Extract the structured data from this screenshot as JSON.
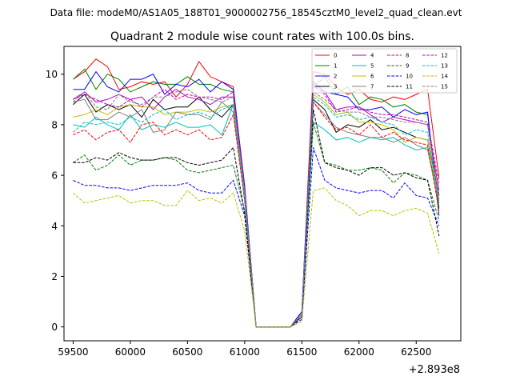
{
  "figure": {
    "suptitle": "Data file: modeM0/AS1A05_188T01_9000002756_18545cztM0_level2_quad_clean.evt"
  },
  "chart_data": {
    "type": "line",
    "title": "Quadrant 2 module wise count rates with 100.0s bins.",
    "xlabel": "",
    "ylabel": "",
    "x_offset_label": "+2.893e8",
    "xlim": [
      59420,
      62890
    ],
    "ylim": [
      -0.55,
      11.1
    ],
    "x_ticks": [
      59500,
      60000,
      60500,
      61000,
      61500,
      62000,
      62500
    ],
    "x_tick_labels": [
      "59500",
      "60000",
      "60500",
      "61000",
      "61500",
      "62000",
      "62500"
    ],
    "y_ticks": [
      0,
      2,
      4,
      6,
      8,
      10
    ],
    "y_tick_labels": [
      "0",
      "2",
      "4",
      "6",
      "8",
      "10"
    ],
    "grid": false,
    "legend_position": "top-right",
    "legend_columns": 4,
    "x": [
      59500,
      59600,
      59700,
      59800,
      59900,
      60000,
      60100,
      60200,
      60300,
      60400,
      60500,
      60600,
      60700,
      60800,
      60900,
      61000,
      61100,
      61200,
      61300,
      61400,
      61500,
      61600,
      61700,
      61800,
      61900,
      62000,
      62100,
      62200,
      62300,
      62400,
      62500,
      62600,
      62700
    ],
    "series": [
      {
        "name": "0",
        "color": "#ff0000",
        "style": "solid",
        "values": [
          9.8,
          10.1,
          10.6,
          10.3,
          9.4,
          9.5,
          9.7,
          9.6,
          9.7,
          9.1,
          9.6,
          10.5,
          9.9,
          9.7,
          9.5,
          5.5,
          0.0,
          0.0,
          0.0,
          0.0,
          0.6,
          10.1,
          10.0,
          9.5,
          9.2,
          9.4,
          9.0,
          8.9,
          9.1,
          9.0,
          9.2,
          9.4,
          5.9
        ]
      },
      {
        "name": "1",
        "color": "#008000",
        "style": "solid",
        "values": [
          9.8,
          10.2,
          9.4,
          10.0,
          9.8,
          9.3,
          9.5,
          9.7,
          9.6,
          9.6,
          9.9,
          9.6,
          9.6,
          9.4,
          9.3,
          5.4,
          0.0,
          0.0,
          0.0,
          0.0,
          0.5,
          9.5,
          9.9,
          9.2,
          9.5,
          8.8,
          9.1,
          9.0,
          8.7,
          8.8,
          8.5,
          8.4,
          4.7
        ]
      },
      {
        "name": "2",
        "color": "#0000ff",
        "style": "solid",
        "values": [
          9.4,
          9.4,
          10.1,
          9.5,
          9.3,
          9.8,
          9.8,
          10.0,
          9.2,
          9.6,
          9.5,
          9.8,
          9.3,
          9.7,
          9.4,
          5.6,
          0.0,
          0.0,
          0.0,
          0.0,
          0.6,
          9.7,
          9.3,
          9.2,
          9.1,
          8.6,
          8.6,
          8.7,
          8.3,
          8.6,
          8.4,
          8.5,
          4.4
        ]
      },
      {
        "name": "3",
        "color": "#000000",
        "style": "solid",
        "values": [
          8.8,
          9.2,
          8.5,
          8.8,
          8.6,
          8.8,
          8.3,
          9.0,
          8.6,
          8.7,
          8.7,
          9.1,
          8.6,
          8.3,
          8.8,
          5.2,
          0.0,
          0.0,
          0.0,
          0.0,
          0.5,
          9.0,
          8.6,
          7.7,
          8.0,
          7.9,
          8.2,
          7.8,
          7.9,
          7.7,
          7.5,
          7.4,
          5.2
        ]
      },
      {
        "name": "4",
        "color": "#bf00bf",
        "style": "solid",
        "values": [
          9.0,
          9.3,
          8.9,
          9.0,
          9.2,
          9.0,
          9.1,
          8.6,
          9.1,
          9.4,
          9.1,
          9.0,
          8.8,
          9.1,
          9.1,
          5.3,
          0.0,
          0.0,
          0.0,
          0.0,
          0.5,
          9.5,
          9.3,
          8.6,
          8.7,
          8.7,
          8.4,
          8.1,
          8.3,
          8.2,
          8.1,
          8.0,
          5.4
        ]
      },
      {
        "name": "5",
        "color": "#00bfbf",
        "style": "solid",
        "values": [
          8.0,
          7.9,
          8.3,
          8.0,
          7.8,
          8.4,
          7.8,
          8.0,
          7.9,
          8.1,
          7.9,
          7.9,
          8.0,
          7.6,
          8.8,
          5.0,
          0.0,
          0.0,
          0.0,
          0.0,
          0.5,
          8.1,
          7.8,
          7.4,
          7.5,
          7.3,
          7.5,
          7.4,
          7.5,
          7.2,
          7.0,
          7.1,
          5.0
        ]
      },
      {
        "name": "6",
        "color": "#bfbf00",
        "style": "solid",
        "values": [
          8.3,
          8.4,
          8.6,
          8.4,
          8.7,
          8.8,
          8.7,
          8.7,
          8.4,
          8.5,
          8.5,
          8.6,
          8.5,
          8.7,
          8.8,
          5.3,
          0.0,
          0.0,
          0.0,
          0.0,
          0.5,
          9.2,
          8.9,
          8.4,
          8.5,
          8.1,
          8.1,
          8.0,
          7.8,
          7.3,
          7.5,
          7.4,
          5.0
        ]
      },
      {
        "name": "7",
        "color": "#808080",
        "style": "solid",
        "values": [
          8.9,
          9.0,
          8.2,
          8.2,
          8.5,
          8.3,
          8.6,
          7.7,
          7.8,
          8.5,
          8.4,
          8.4,
          8.2,
          8.9,
          8.5,
          5.1,
          0.0,
          0.0,
          0.0,
          0.0,
          0.5,
          8.9,
          8.4,
          7.9,
          7.7,
          7.6,
          7.5,
          7.5,
          7.3,
          7.5,
          7.2,
          7.0,
          4.9
        ]
      },
      {
        "name": "8",
        "color": "#ff0000",
        "style": "dashed",
        "values": [
          7.6,
          7.8,
          7.4,
          7.7,
          7.8,
          7.3,
          8.0,
          8.1,
          7.6,
          7.8,
          7.6,
          7.8,
          7.4,
          7.5,
          8.4,
          5.0,
          0.0,
          0.0,
          0.0,
          0.0,
          0.4,
          8.9,
          8.3,
          7.8,
          7.9,
          7.6,
          8.0,
          7.5,
          7.7,
          7.4,
          7.3,
          7.2,
          4.6
        ]
      },
      {
        "name": "9",
        "color": "#008000",
        "style": "dashed",
        "values": [
          6.5,
          6.8,
          6.2,
          6.4,
          6.8,
          6.4,
          6.6,
          6.6,
          6.7,
          6.6,
          6.2,
          6.1,
          6.2,
          6.3,
          6.4,
          4.6,
          0.0,
          0.0,
          0.0,
          0.0,
          0.4,
          8.1,
          6.5,
          6.4,
          6.2,
          6.2,
          6.3,
          6.2,
          5.7,
          6.1,
          6.0,
          5.8,
          4.2
        ]
      },
      {
        "name": "10",
        "color": "#0000ff",
        "style": "dashed",
        "values": [
          5.8,
          5.6,
          5.6,
          5.5,
          5.5,
          5.4,
          5.5,
          5.6,
          5.6,
          5.6,
          5.7,
          5.4,
          5.3,
          5.3,
          5.8,
          4.4,
          0.0,
          0.0,
          0.0,
          0.0,
          0.3,
          7.1,
          5.8,
          5.5,
          5.4,
          5.3,
          5.4,
          5.4,
          5.1,
          5.7,
          5.2,
          5.1,
          4.0
        ]
      },
      {
        "name": "11",
        "color": "#000000",
        "style": "dashed",
        "values": [
          6.5,
          6.5,
          6.7,
          6.6,
          6.9,
          6.7,
          6.6,
          6.6,
          6.7,
          6.7,
          6.5,
          6.4,
          6.5,
          6.6,
          7.1,
          4.5,
          0.0,
          0.0,
          0.0,
          0.0,
          0.4,
          8.6,
          6.5,
          6.3,
          6.2,
          6.0,
          6.3,
          6.3,
          6.0,
          6.1,
          5.9,
          5.8,
          3.6
        ]
      },
      {
        "name": "12",
        "color": "#bf00bf",
        "style": "dashed",
        "values": [
          9.0,
          9.2,
          9.0,
          8.8,
          8.7,
          9.0,
          8.7,
          9.1,
          9.4,
          9.0,
          9.2,
          9.1,
          9.1,
          9.0,
          9.3,
          5.5,
          0.0,
          0.0,
          0.0,
          0.0,
          0.5,
          9.6,
          9.2,
          8.5,
          8.6,
          8.7,
          8.5,
          8.4,
          8.4,
          8.3,
          8.2,
          8.1,
          5.7
        ]
      },
      {
        "name": "13",
        "color": "#00bfbf",
        "style": "dashed",
        "values": [
          7.7,
          8.1,
          8.0,
          8.1,
          8.0,
          8.3,
          8.1,
          8.4,
          8.6,
          8.2,
          8.4,
          8.5,
          8.3,
          8.6,
          8.8,
          5.1,
          0.0,
          0.0,
          0.0,
          0.0,
          0.5,
          9.1,
          8.8,
          8.3,
          8.4,
          8.2,
          8.3,
          8.1,
          8.0,
          7.6,
          7.8,
          7.7,
          5.0
        ]
      },
      {
        "name": "14",
        "color": "#bfbf00",
        "style": "dashed",
        "values": [
          5.3,
          4.9,
          5.0,
          5.1,
          5.2,
          4.9,
          5.0,
          5.0,
          4.8,
          4.8,
          5.4,
          5.0,
          5.1,
          4.9,
          5.3,
          3.8,
          0.0,
          0.0,
          0.0,
          0.0,
          0.2,
          5.4,
          5.5,
          5.0,
          4.8,
          4.4,
          4.6,
          4.6,
          4.4,
          4.6,
          4.7,
          4.5,
          2.9
        ]
      },
      {
        "name": "15",
        "color": "#808080",
        "style": "dashed",
        "values": [
          8.9,
          9.3,
          8.7,
          8.6,
          9.2,
          8.9,
          8.8,
          9.1,
          9.1,
          9.3,
          9.4,
          9.1,
          9.0,
          8.9,
          9.1,
          5.3,
          0.0,
          0.0,
          0.0,
          0.0,
          0.5,
          9.3,
          9.0,
          8.6,
          8.5,
          8.5,
          8.3,
          8.3,
          8.2,
          8.1,
          8.1,
          8.0,
          5.1
        ]
      }
    ]
  }
}
